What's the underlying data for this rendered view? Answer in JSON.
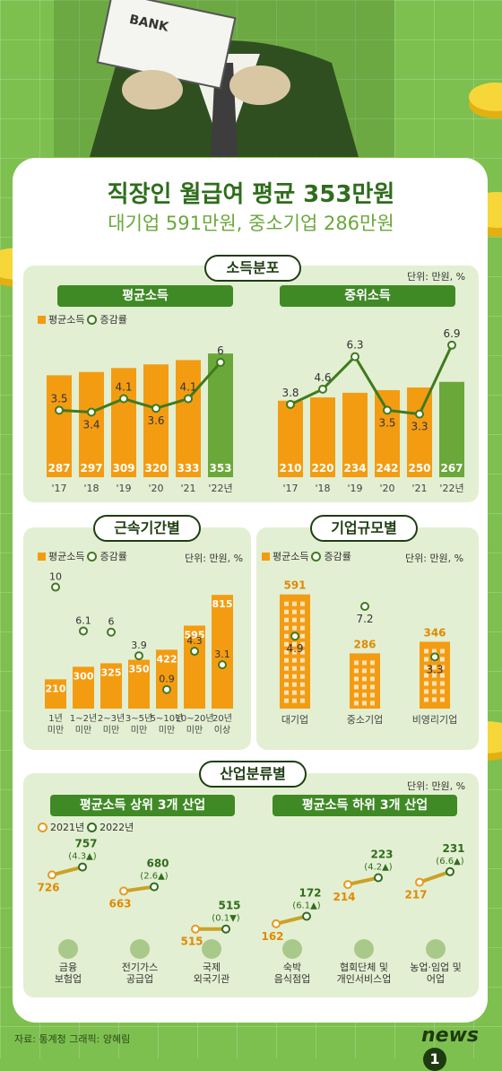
{
  "header": {
    "title": "직장인 월급여 평균 353만원",
    "subtitle": "대기업 591만원, 중소기업 286만원",
    "hero_book_label": "BANK"
  },
  "legend": {
    "avg_income": "평균소득",
    "change_rate": "증감률",
    "year_2021": "2021년",
    "year_2022": "2022년"
  },
  "unit_label": "단위: 만원, %",
  "sections": {
    "income_distribution": "소득분포",
    "tenure": "근속기간별",
    "company_size": "기업규모별",
    "industry": "산업분류별"
  },
  "panels": {
    "average_income": "평균소득",
    "median_income": "중위소득",
    "top3": "평균소득 상위 3개 산업",
    "bottom3": "평균소득 하위 3개 산업"
  },
  "colors": {
    "bar": "#f39c12",
    "bar_latest": "#6aa83a",
    "line": "#3f7a1f",
    "accent_dark": "#2f6d1c"
  },
  "chart_data": [
    {
      "id": "average_income",
      "type": "bar",
      "categories": [
        "'17",
        "'18",
        "'19",
        "'20",
        "'21",
        "'22년"
      ],
      "values": [
        287,
        297,
        309,
        320,
        333,
        353
      ],
      "line": [
        3.5,
        3.4,
        4.1,
        3.6,
        4.1,
        6
      ],
      "line_labels": [
        "3.5",
        "3.4",
        "4.1",
        "3.6",
        "4.1",
        "6"
      ],
      "ylim": [
        0,
        400
      ],
      "line_ylim": [
        0,
        7.5
      ]
    },
    {
      "id": "median_income",
      "type": "bar",
      "categories": [
        "'17",
        "'18",
        "'19",
        "'20",
        "'21",
        "'22년"
      ],
      "values": [
        210,
        220,
        234,
        242,
        250,
        267
      ],
      "line": [
        3.8,
        4.6,
        6.3,
        3.5,
        3.3,
        6.9
      ],
      "line_labels": [
        "3.8",
        "4.6",
        "6.3",
        "3.5",
        "3.3",
        "6.9"
      ],
      "ylim": [
        0,
        400
      ],
      "line_ylim": [
        0,
        7.5
      ]
    },
    {
      "id": "tenure",
      "type": "bar",
      "categories": [
        "1년\n미만",
        "1~2년\n미만",
        "2~3년\n미만",
        "3~5년\n미만",
        "5~10년\n미만",
        "10~20년\n미만",
        "20년\n이상"
      ],
      "values": [
        210,
        300,
        325,
        350,
        422,
        595,
        815
      ],
      "line": [
        10,
        6.1,
        6,
        3.9,
        0.9,
        4.3,
        3.1
      ],
      "line_labels": [
        "10",
        "6.1",
        "6",
        "3.9",
        "0.9",
        "4.3",
        "3.1"
      ]
    },
    {
      "id": "company_size",
      "type": "bar",
      "categories": [
        "대기업",
        "중소기업",
        "비영리기업"
      ],
      "values": [
        591,
        286,
        346
      ],
      "line": [
        4.9,
        7.2,
        3.3
      ],
      "line_labels": [
        "4.9",
        "7.2",
        "3.3"
      ]
    },
    {
      "id": "industry_top3",
      "type": "scatter",
      "categories": [
        "금융\n보험업",
        "전기가스\n공급업",
        "국제\n외국기관"
      ],
      "values_2021": [
        726,
        663,
        515
      ],
      "values_2022": [
        757,
        680,
        515
      ],
      "change_labels": [
        "(4.3▲)",
        "(2.6▲)",
        "(0.1▼)"
      ],
      "icons": [
        "bank-icon",
        "plug-icon",
        "globe-icon"
      ]
    },
    {
      "id": "industry_bottom3",
      "type": "scatter",
      "categories": [
        "숙박\n음식점업",
        "협회단체 및\n개인서비스업",
        "농업·임업 및\n어업"
      ],
      "values_2021": [
        162,
        214,
        217
      ],
      "values_2022": [
        172,
        223,
        231
      ],
      "change_labels": [
        "(6.1▲)",
        "(4.2▲)",
        "(6.6▲)"
      ],
      "icons": [
        "fork-knife-icon",
        "people-icon",
        "fish-icon"
      ]
    }
  ],
  "footer": {
    "source": "자료: 통계청  그래픽: 양혜림",
    "logo_text": "news",
    "logo_digit": "1"
  }
}
